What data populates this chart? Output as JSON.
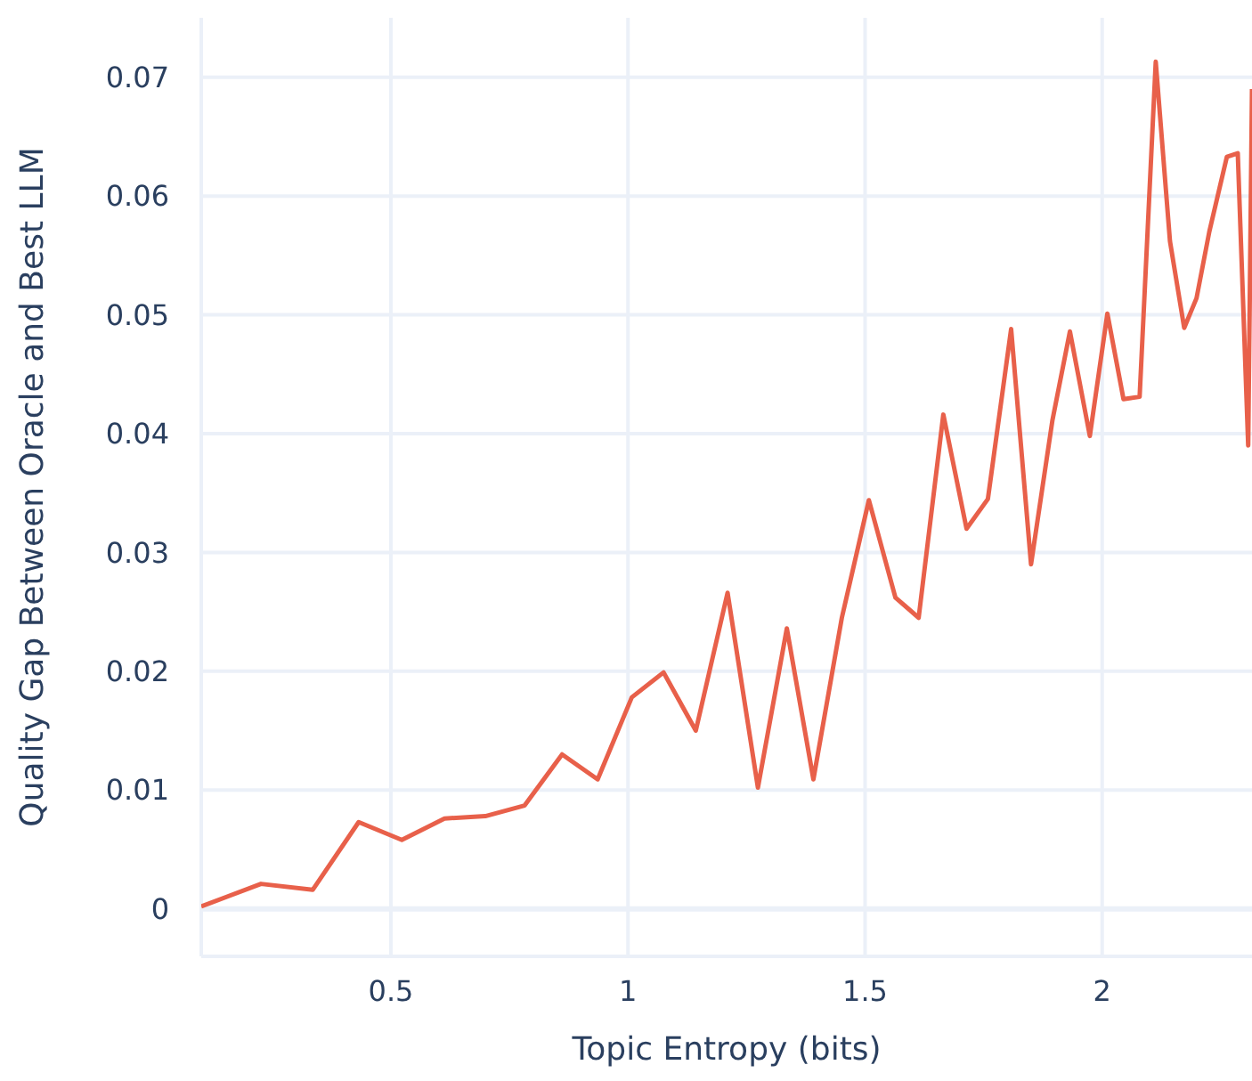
{
  "chart_data": {
    "type": "line",
    "xlabel": "Topic Entropy (bits)",
    "ylabel": "Quality Gap Between Oracle and Best LLM",
    "x": [
      0.1,
      0.226,
      0.335,
      0.432,
      0.523,
      0.613,
      0.699,
      0.782,
      0.861,
      0.936,
      1.008,
      1.075,
      1.143,
      1.21,
      1.274,
      1.335,
      1.391,
      1.451,
      1.508,
      1.564,
      1.613,
      1.665,
      1.714,
      1.759,
      1.808,
      1.85,
      1.895,
      1.932,
      1.974,
      2.011,
      2.045,
      2.079,
      2.113,
      2.143,
      2.173,
      2.199,
      2.226,
      2.263,
      2.286,
      2.308,
      2.316
    ],
    "series": [
      {
        "color": "#e8604a",
        "values": [
          0.0002,
          0.0021,
          0.0016,
          0.0073,
          0.0058,
          0.0076,
          0.0078,
          0.0087,
          0.013,
          0.0109,
          0.0178,
          0.0199,
          0.015,
          0.0266,
          0.0102,
          0.0236,
          0.0109,
          0.0245,
          0.0344,
          0.0262,
          0.0245,
          0.0416,
          0.032,
          0.0345,
          0.0488,
          0.029,
          0.0411,
          0.0486,
          0.0398,
          0.0501,
          0.0429,
          0.0431,
          0.0713,
          0.0562,
          0.0489,
          0.0514,
          0.057,
          0.0633,
          0.0636,
          0.039,
          0.069
        ]
      }
    ],
    "xlim": [
      0.1,
      2.316
    ],
    "ylim": [
      -0.004,
      0.075
    ],
    "xticks": [
      0.5,
      1,
      1.5,
      2
    ],
    "yticks": [
      0,
      0.01,
      0.02,
      0.03,
      0.04,
      0.05,
      0.06,
      0.07
    ],
    "grid": true,
    "line_style": "solid",
    "marker": "none"
  }
}
